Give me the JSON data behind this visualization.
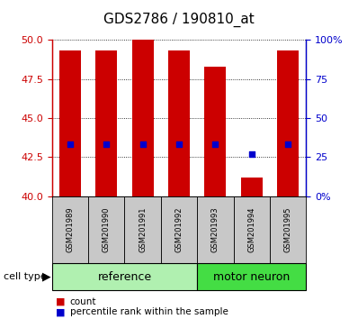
{
  "title": "GDS2786 / 190810_at",
  "samples": [
    "GSM201989",
    "GSM201990",
    "GSM201991",
    "GSM201992",
    "GSM201993",
    "GSM201994",
    "GSM201995"
  ],
  "bar_heights": [
    49.3,
    49.3,
    50.0,
    49.3,
    48.3,
    41.2,
    49.3
  ],
  "blue_squares": [
    43.3,
    43.3,
    43.3,
    43.3,
    43.3,
    42.7,
    43.3
  ],
  "bar_color": "#cc0000",
  "blue_color": "#0000cc",
  "ymin": 40,
  "ymax": 50,
  "yticks_left": [
    40,
    42.5,
    45,
    47.5,
    50
  ],
  "yticks_right": [
    0,
    25,
    50,
    75,
    100
  ],
  "right_tick_labels": [
    "0",
    "25",
    "50",
    "75",
    "100%"
  ],
  "cell_type_label": "cell type",
  "legend_count": "count",
  "legend_percentile": "percentile rank within the sample",
  "title_fontsize": 11,
  "tick_fontsize": 8,
  "sample_fontsize": 6,
  "group_fontsize": 9,
  "bar_width": 0.6,
  "xlabel_bg": "#c8c8c8",
  "ref_color": "#b0f0b0",
  "mot_color": "#44dd44",
  "ref_label": "reference",
  "mot_label": "motor neuron",
  "ref_samples": 4,
  "mot_samples": 3
}
